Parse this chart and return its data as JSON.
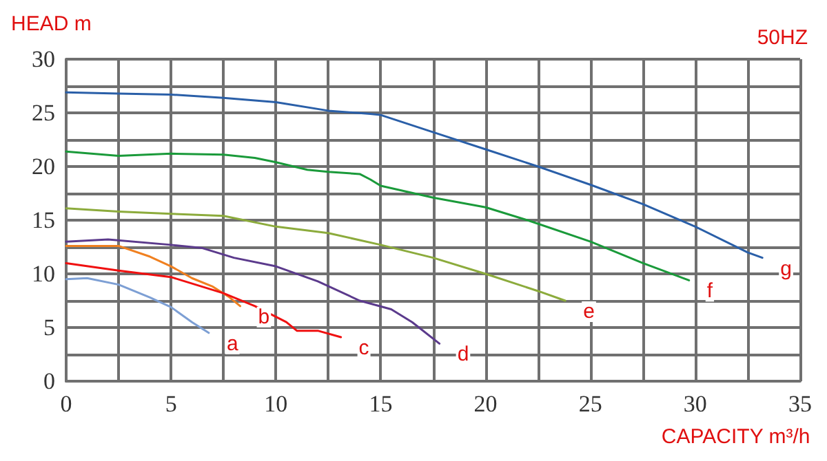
{
  "chart_data": {
    "type": "line",
    "ylabel": "HEAD m",
    "xlabel": "CAPACITY m³/h",
    "annotations": [
      "50HZ"
    ],
    "xlim": [
      0,
      35
    ],
    "xticks": [
      0,
      {
        "value": 2.5,
        "label": null
      },
      5,
      {
        "value": 7.5,
        "label": null
      },
      10,
      {
        "value": 12.5,
        "label": null
      },
      15,
      {
        "value": 17.5,
        "label": null
      },
      20,
      {
        "value": 22.5,
        "label": null
      },
      25,
      {
        "value": 27.5,
        "label": null
      },
      30,
      {
        "value": 32.5,
        "label": null
      },
      35
    ],
    "ylim": [
      0,
      30
    ],
    "yticks": [
      0,
      {
        "value": 2.5,
        "label": null
      },
      5,
      {
        "value": 7.5,
        "label": null
      },
      10,
      {
        "value": 12.5,
        "label": null
      },
      15,
      {
        "value": 17.5,
        "label": null
      },
      20,
      {
        "value": 22.5,
        "label": null
      },
      25,
      {
        "value": 27.5,
        "label": null
      },
      30
    ],
    "grid": true,
    "legend": false,
    "marker": "none",
    "line_style": "solid",
    "series": [
      {
        "name": "a",
        "color": "#7d9fd4",
        "x": [
          0,
          1,
          2.5,
          4,
          5,
          6,
          6.8
        ],
        "values": [
          9.5,
          9.6,
          9,
          7.8,
          6.9,
          5.5,
          4.5
        ]
      },
      {
        "name": "b",
        "color": "#f08020",
        "x": [
          0,
          2.5,
          4,
          5,
          6,
          7,
          7.8,
          8.3
        ],
        "values": [
          12.6,
          12.6,
          11.6,
          10.7,
          9.6,
          8.8,
          7.8,
          7
        ]
      },
      {
        "name": "c",
        "color": "#f01010",
        "x": [
          0,
          2.5,
          5,
          7.5,
          9,
          10.5,
          11,
          12,
          13.1
        ],
        "values": [
          11,
          10.3,
          9.7,
          8.2,
          7,
          5.5,
          4.7,
          4.7,
          4.1
        ]
      },
      {
        "name": "d",
        "color": "#5b3a8c",
        "x": [
          0,
          2,
          5,
          6.5,
          8,
          10,
          12,
          14,
          15.5,
          16.5,
          17.8
        ],
        "values": [
          13,
          13.2,
          12.7,
          12.4,
          11.5,
          10.7,
          9.3,
          7.5,
          6.7,
          5.5,
          3.5
        ]
      },
      {
        "name": "e",
        "color": "#8cab3c",
        "x": [
          0,
          2.5,
          5,
          7.5,
          10,
          12.5,
          15,
          17.5,
          20,
          22.5,
          23.8
        ],
        "values": [
          16.1,
          15.8,
          15.6,
          15.4,
          14.4,
          13.8,
          12.7,
          11.5,
          10,
          8.4,
          7.5
        ]
      },
      {
        "name": "f",
        "color": "#1a9a3a",
        "x": [
          0,
          2.5,
          5,
          7.5,
          9,
          10,
          11.5,
          12.5,
          14,
          14.5,
          15,
          17.5,
          20,
          22,
          25,
          27.5,
          29.7
        ],
        "values": [
          21.4,
          21,
          21.2,
          21.1,
          20.8,
          20.4,
          19.7,
          19.5,
          19.3,
          18.8,
          18.2,
          17.1,
          16.2,
          15,
          13,
          11,
          9.4
        ]
      },
      {
        "name": "g",
        "color": "#2a5fa8",
        "x": [
          0,
          2.5,
          5,
          7.5,
          10,
          12.5,
          14.5,
          15,
          17.5,
          20,
          22.5,
          25,
          27.5,
          30,
          32.5,
          33.2
        ],
        "values": [
          26.9,
          26.8,
          26.7,
          26.4,
          26,
          25.2,
          24.9,
          24.8,
          23.2,
          21.6,
          20,
          18.3,
          16.5,
          14.4,
          12,
          11.5
        ]
      }
    ]
  }
}
